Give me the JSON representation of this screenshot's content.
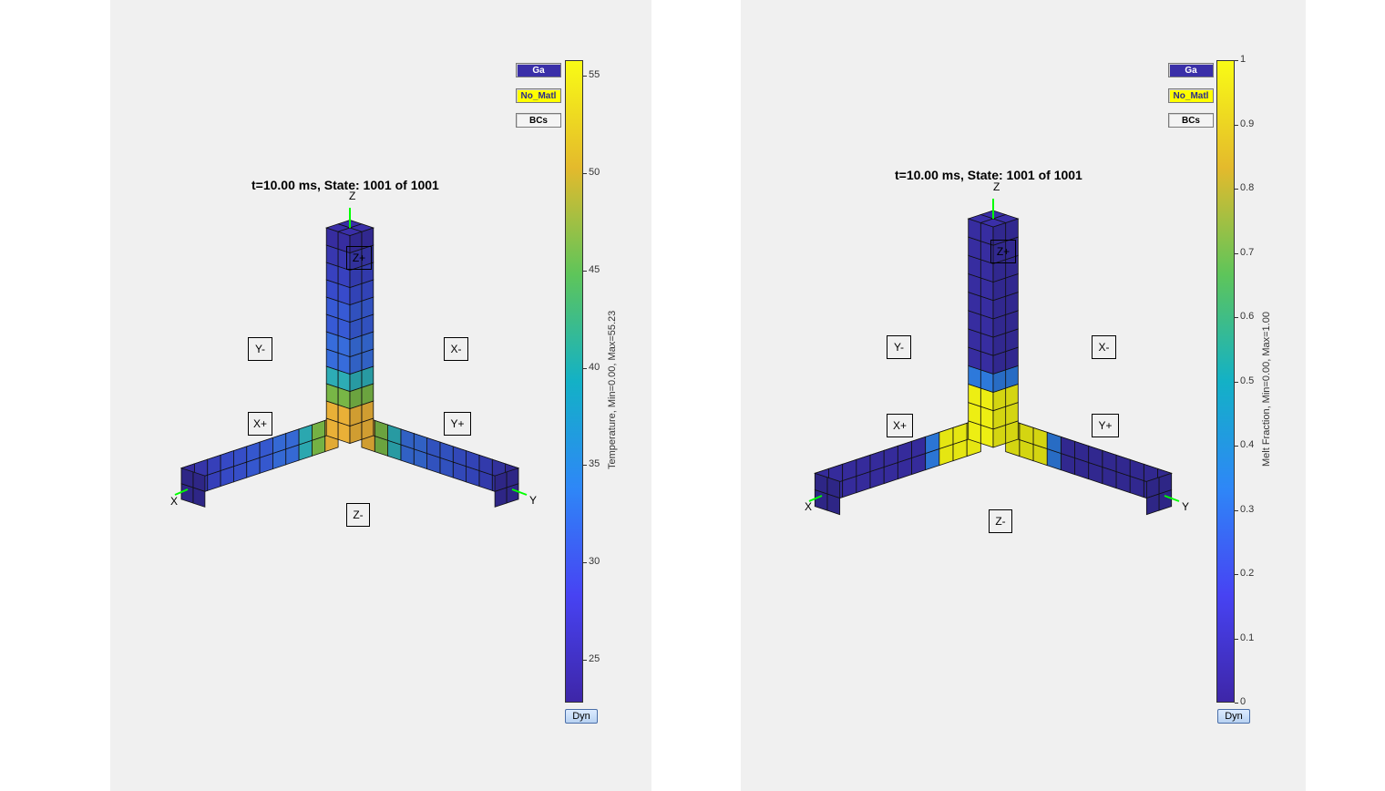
{
  "panels": [
    {
      "id": "left",
      "title": "t=10.00 ms, State: 1001 of 1001",
      "axes": {
        "x": "X",
        "y": "Y",
        "z": "Z"
      },
      "faces": {
        "z_plus": "Z+",
        "z_minus": "Z-",
        "x_plus": "X+",
        "x_minus": "X-",
        "y_plus": "Y+",
        "y_minus": "Y-"
      },
      "buttons": {
        "material_1": "Ga",
        "material_2": "No_Matl",
        "bcs": "BCs",
        "dyn": "Dyn"
      },
      "colorbar": {
        "label": "Temperature, Min=0.00, Max=55.23",
        "ticks": [
          "25",
          "30",
          "35",
          "40",
          "45",
          "50",
          "55"
        ],
        "range": [
          22.8,
          55.8
        ]
      },
      "cells": {
        "z_column_bottom_to_top": [
          "#f5b93a",
          "#f5b93a",
          "#7ec04a",
          "#2fb5be",
          "#3a72e6",
          "#3a72e6",
          "#3a5fe0",
          "#3a5fe0",
          "#3b4fd6",
          "#3b44c9",
          "#3b3ab8",
          "#3a2fa8"
        ],
        "x_arm_center_to_end": [
          "#f5b93a",
          "#7ec04a",
          "#2fb5be",
          "#3a72e6",
          "#3a72e6",
          "#3a60e0",
          "#3a5fe0",
          "#3b55d8",
          "#3b4fd6",
          "#3b44c9",
          "#3b3ab8",
          "#3a2fa8"
        ],
        "y_arm_center_to_end": [
          "#f5b93a",
          "#7ec04a",
          "#2fb5be",
          "#3a72e6",
          "#3a72e6",
          "#3a60e0",
          "#3a5fe0",
          "#3b55d8",
          "#3b4fd6",
          "#3b44c9",
          "#3b3ab8",
          "#3a2fa8"
        ]
      }
    },
    {
      "id": "right",
      "title": "t=10.00 ms, State: 1001 of 1001",
      "axes": {
        "x": "X",
        "y": "Y",
        "z": "Z"
      },
      "faces": {
        "z_plus": "Z+",
        "z_minus": "Z-",
        "x_plus": "X+",
        "x_minus": "X-",
        "y_plus": "Y+",
        "y_minus": "Y-"
      },
      "buttons": {
        "material_1": "Ga",
        "material_2": "No_Matl",
        "bcs": "BCs",
        "dyn": "Dyn"
      },
      "colorbar": {
        "label": "Melt Fraction, Min=0.00, Max=1.00",
        "ticks": [
          "0",
          "0.1",
          "0.2",
          "0.3",
          "0.4",
          "0.5",
          "0.6",
          "0.7",
          "0.8",
          "0.9",
          "1"
        ],
        "range": [
          0,
          1
        ]
      },
      "cells": {
        "z_column_bottom_to_top": [
          "#f9fa14",
          "#f9fa14",
          "#f9fa14",
          "#2f7fe6",
          "#3a2fa8",
          "#3a2fa8",
          "#3a2fa8",
          "#3a2fa8",
          "#3a2fa8",
          "#3a2fa8",
          "#3a2fa8",
          "#3a2fa8"
        ],
        "x_arm_center_to_end": [
          "#f9fa14",
          "#f9fa14",
          "#f9fa14",
          "#2f7fe6",
          "#3a2fa8",
          "#3a2fa8",
          "#3a2fa8",
          "#3a2fa8",
          "#3a2fa8",
          "#3a2fa8",
          "#3a2fa8",
          "#3a2fa8"
        ],
        "y_arm_center_to_end": [
          "#f9fa14",
          "#f9fa14",
          "#f9fa14",
          "#2f7fe6",
          "#3a2fa8",
          "#3a2fa8",
          "#3a2fa8",
          "#3a2fa8",
          "#3a2fa8",
          "#3a2fa8",
          "#3a2fa8",
          "#3a2fa8"
        ]
      }
    }
  ],
  "colors": {
    "figure_background": "#f0f0f0",
    "axis_line": "#00ff00",
    "colormap_parula": [
      "#3e26a8",
      "#4743f3",
      "#2e87f7",
      "#13b1c6",
      "#5ec55a",
      "#e4ba2c",
      "#f9fb15"
    ]
  }
}
